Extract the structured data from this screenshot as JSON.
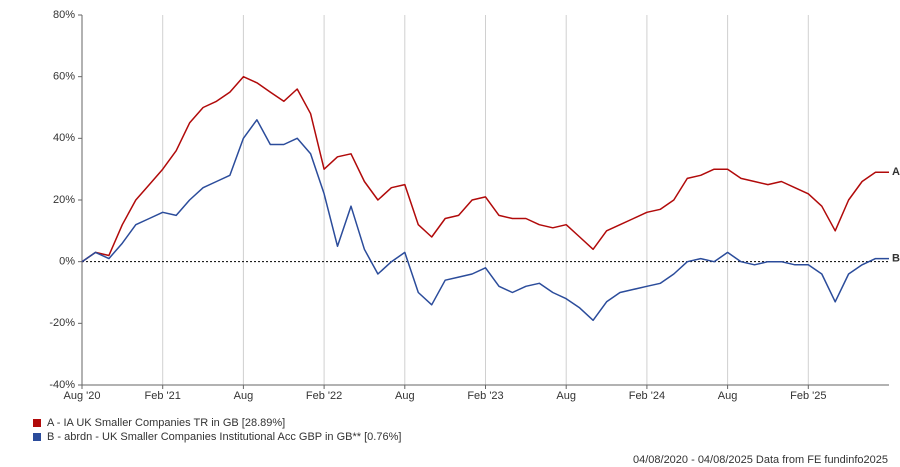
{
  "chart_data": {
    "type": "line",
    "x": [
      "2020-08",
      "2020-09",
      "2020-10",
      "2020-11",
      "2020-12",
      "2021-01",
      "2021-02",
      "2021-03",
      "2021-04",
      "2021-05",
      "2021-06",
      "2021-07",
      "2021-08",
      "2021-09",
      "2021-10",
      "2021-11",
      "2021-12",
      "2022-01",
      "2022-02",
      "2022-03",
      "2022-04",
      "2022-05",
      "2022-06",
      "2022-07",
      "2022-08",
      "2022-09",
      "2022-10",
      "2022-11",
      "2022-12",
      "2023-01",
      "2023-02",
      "2023-03",
      "2023-04",
      "2023-05",
      "2023-06",
      "2023-07",
      "2023-08",
      "2023-09",
      "2023-10",
      "2023-11",
      "2023-12",
      "2024-01",
      "2024-02",
      "2024-03",
      "2024-04",
      "2024-05",
      "2024-06",
      "2024-07",
      "2024-08",
      "2024-09",
      "2024-10",
      "2024-11",
      "2024-12",
      "2025-01",
      "2025-02",
      "2025-03",
      "2025-04",
      "2025-05",
      "2025-06",
      "2025-07",
      "2025-08"
    ],
    "series": [
      {
        "name": "A - IA UK Smaller Companies TR in GB [28.89%]",
        "marker": "A",
        "color": "#b10a0a",
        "values": [
          0,
          3,
          2,
          12,
          20,
          25,
          30,
          36,
          45,
          50,
          52,
          55,
          60,
          58,
          55,
          52,
          56,
          48,
          30,
          34,
          35,
          26,
          20,
          24,
          25,
          12,
          8,
          14,
          15,
          20,
          21,
          15,
          14,
          14,
          12,
          11,
          12,
          8,
          4,
          10,
          12,
          14,
          16,
          17,
          20,
          27,
          28,
          30,
          30,
          27,
          26,
          25,
          26,
          24,
          22,
          18,
          10,
          20,
          26,
          29,
          29
        ]
      },
      {
        "name": "B - abrdn - UK Smaller Companies Institutional Acc GBP in GB** [0.76%]",
        "marker": "B",
        "color": "#2b4c9b",
        "values": [
          0,
          3,
          1,
          6,
          12,
          14,
          16,
          15,
          20,
          24,
          26,
          28,
          40,
          46,
          38,
          38,
          40,
          35,
          22,
          5,
          18,
          4,
          -4,
          0,
          3,
          -10,
          -14,
          -6,
          -5,
          -4,
          -2,
          -8,
          -10,
          -8,
          -7,
          -10,
          -12,
          -15,
          -19,
          -13,
          -10,
          -9,
          -8,
          -7,
          -4,
          0,
          1,
          0,
          3,
          0,
          -1,
          0,
          0,
          -1,
          -1,
          -4,
          -13,
          -4,
          -1,
          1,
          1
        ]
      }
    ],
    "xlim": [
      "2020-08",
      "2025-08"
    ],
    "xticks": [
      {
        "value": "2020-08",
        "label": "Aug '20"
      },
      {
        "value": "2021-02",
        "label": "Feb '21"
      },
      {
        "value": "2021-08",
        "label": "Aug"
      },
      {
        "value": "2022-02",
        "label": "Feb '22"
      },
      {
        "value": "2022-08",
        "label": "Aug"
      },
      {
        "value": "2023-02",
        "label": "Feb '23"
      },
      {
        "value": "2023-08",
        "label": "Aug"
      },
      {
        "value": "2024-02",
        "label": "Feb '24"
      },
      {
        "value": "2024-08",
        "label": "Aug"
      },
      {
        "value": "2025-02",
        "label": "Feb '25"
      }
    ],
    "ylim": [
      -40,
      80
    ],
    "yticks": [
      {
        "value": -40,
        "label": "-40%"
      },
      {
        "value": -20,
        "label": "-20%"
      },
      {
        "value": 0,
        "label": "0%"
      },
      {
        "value": 20,
        "label": "20%"
      },
      {
        "value": 40,
        "label": "40%"
      },
      {
        "value": 60,
        "label": "60%"
      },
      {
        "value": 80,
        "label": "80%"
      }
    ],
    "grid": true,
    "zero_line": true,
    "source": "04/08/2020 - 04/08/2025 Data from FE fundinfo2025"
  }
}
